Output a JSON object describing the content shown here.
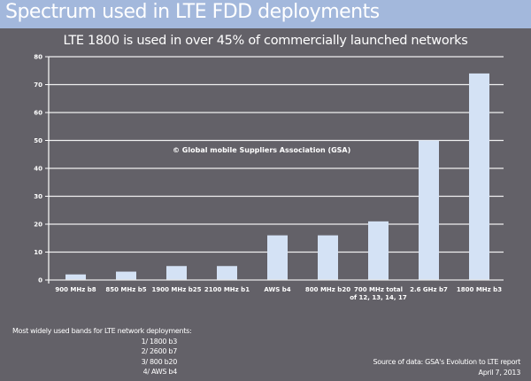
{
  "header": {
    "title": "Spectrum used in LTE FDD deployments"
  },
  "chart_data": {
    "type": "bar",
    "title": "LTE 1800 is used in over 45% of commercially launched networks",
    "categories": [
      "900 MHz b8",
      "850 MHz b5",
      "1900 MHz b25",
      "2100 MHz b1",
      "AWS b4",
      "800 MHz b20",
      "700 MHz total of 12, 13, 14, 17",
      "2.6 GHz b7",
      "1800 MHz b3"
    ],
    "values": [
      2,
      3,
      5,
      5,
      16,
      16,
      21,
      50,
      74
    ],
    "ylim": [
      0,
      80
    ],
    "yticks": [
      0,
      10,
      20,
      30,
      40,
      50,
      60,
      70,
      80
    ],
    "grid": true,
    "xlabel": "",
    "ylabel": "",
    "bar_color": "#d4e2f5",
    "annotation": "© Global mobile Suppliers Association (GSA)"
  },
  "footer": {
    "bands_heading": "Most widely used bands for LTE network deployments:",
    "bands": [
      "1/ 1800 b3",
      "2/ 2600 b7",
      "3/ 800 b20",
      "4/ AWS b4"
    ],
    "source": "Source of data: GSA's Evolution to LTE report",
    "date": "April 7, 2013"
  }
}
